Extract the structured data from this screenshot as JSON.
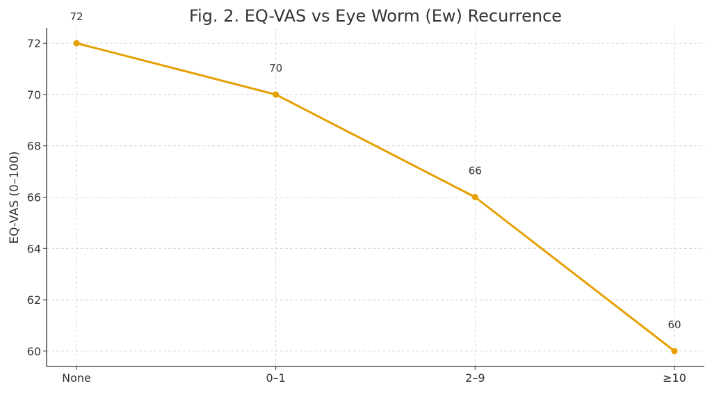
{
  "chart_data": {
    "type": "line",
    "title": "Fig. 2. EQ-VAS vs Eye Worm (Ew) Recurrence",
    "xlabel": "",
    "ylabel": "EQ-VAS (0–100)",
    "categories": [
      "None",
      "0–1",
      "2–9",
      "≥10"
    ],
    "series": [
      {
        "values": [
          72,
          70,
          66,
          60
        ],
        "color": "#E69F00"
      }
    ],
    "data_labels": [
      "72",
      "70",
      "66",
      "60"
    ],
    "yticks": [
      60,
      62,
      64,
      66,
      68,
      70,
      72
    ],
    "ylim": [
      59.4,
      72.6
    ],
    "grid": true,
    "legend": "none"
  }
}
